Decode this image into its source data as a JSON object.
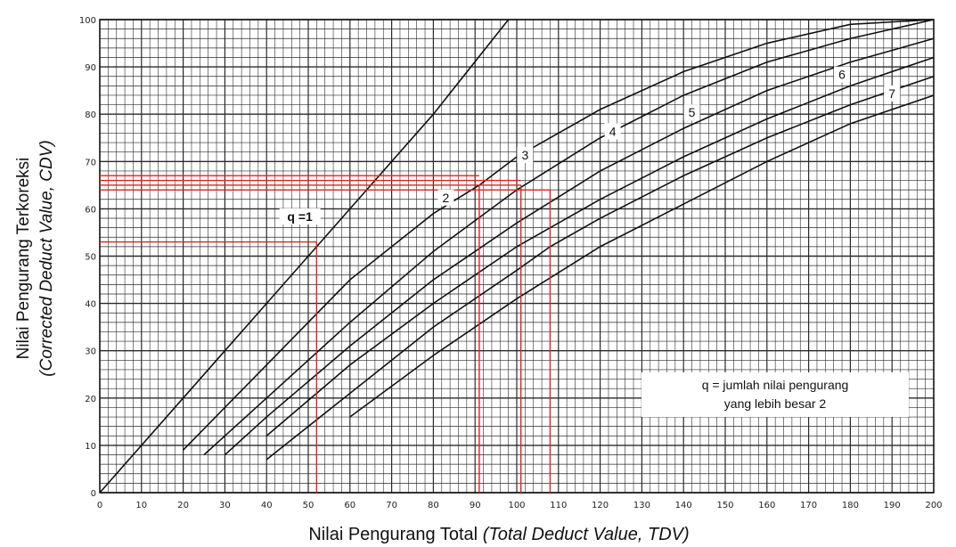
{
  "chart_data": {
    "type": "line",
    "title": "",
    "xlabel": "Nilai Pengurang Total",
    "xlabel_italic": "(Total Deduct Value, TDV)",
    "ylabel": "Nilai Pengurang Terkoreksi",
    "ylabel_italic": "(Corrected Deduct Value, CDV)",
    "xlim": [
      0,
      200
    ],
    "ylim": [
      0,
      100
    ],
    "grid": true,
    "x_ticks": [
      "0",
      "10",
      "20",
      "30",
      "40",
      "50",
      "60",
      "70",
      "80",
      "90",
      "100",
      "110",
      "120",
      "130",
      "140",
      "150",
      "160",
      "170",
      "180",
      "190",
      "200"
    ],
    "y_ticks": [
      "0",
      "10",
      "20",
      "30",
      "40",
      "50",
      "60",
      "70",
      "80",
      "90",
      "100"
    ],
    "series": [
      {
        "name": "q =1",
        "x": [
          0,
          20,
          40,
          52,
          60,
          80,
          98
        ],
        "y": [
          0,
          20,
          40,
          52,
          60,
          80,
          100
        ]
      },
      {
        "name": "2",
        "x": [
          20,
          40,
          60,
          80,
          91,
          100,
          120,
          140,
          160,
          180,
          200
        ],
        "y": [
          9,
          27,
          45,
          59,
          65,
          71,
          81,
          89,
          95,
          99,
          101
        ]
      },
      {
        "name": "3",
        "x": [
          25,
          40,
          60,
          80,
          100,
          120,
          140,
          160,
          180,
          200
        ],
        "y": [
          8,
          20,
          36,
          51,
          64,
          75,
          84,
          91,
          96,
          100
        ]
      },
      {
        "name": "4",
        "x": [
          30,
          40,
          60,
          80,
          100,
          120,
          140,
          160,
          180,
          200
        ],
        "y": [
          8,
          16,
          31,
          45,
          57,
          68,
          77,
          85,
          91,
          96
        ]
      },
      {
        "name": "5",
        "x": [
          40,
          60,
          80,
          100,
          120,
          140,
          160,
          180,
          200
        ],
        "y": [
          12,
          27,
          40,
          52,
          62,
          71,
          79,
          86,
          92
        ]
      },
      {
        "name": "6",
        "x": [
          40,
          60,
          80,
          100,
          108,
          120,
          140,
          160,
          180,
          200
        ],
        "y": [
          7,
          21,
          35,
          47,
          52,
          58,
          67,
          75,
          82,
          88
        ]
      },
      {
        "name": "7",
        "x": [
          60,
          80,
          100,
          120,
          140,
          160,
          180,
          200
        ],
        "y": [
          16,
          29,
          41,
          52,
          61,
          70,
          78,
          84
        ]
      }
    ],
    "reference_lines": [
      {
        "x": 52,
        "y": 53
      },
      {
        "x": 91,
        "y": 65
      },
      {
        "x": 101,
        "y": 65
      },
      {
        "x": 108,
        "y": 64
      }
    ],
    "reference_levels_y": [
      67,
      66,
      65,
      64
    ],
    "note_lines": [
      "q = jumlah nilai pengurang",
      "yang lebih besar 2"
    ],
    "colors": {
      "grid": "#2a2a2a",
      "curves": "#111111",
      "reference": "#e02020"
    }
  }
}
